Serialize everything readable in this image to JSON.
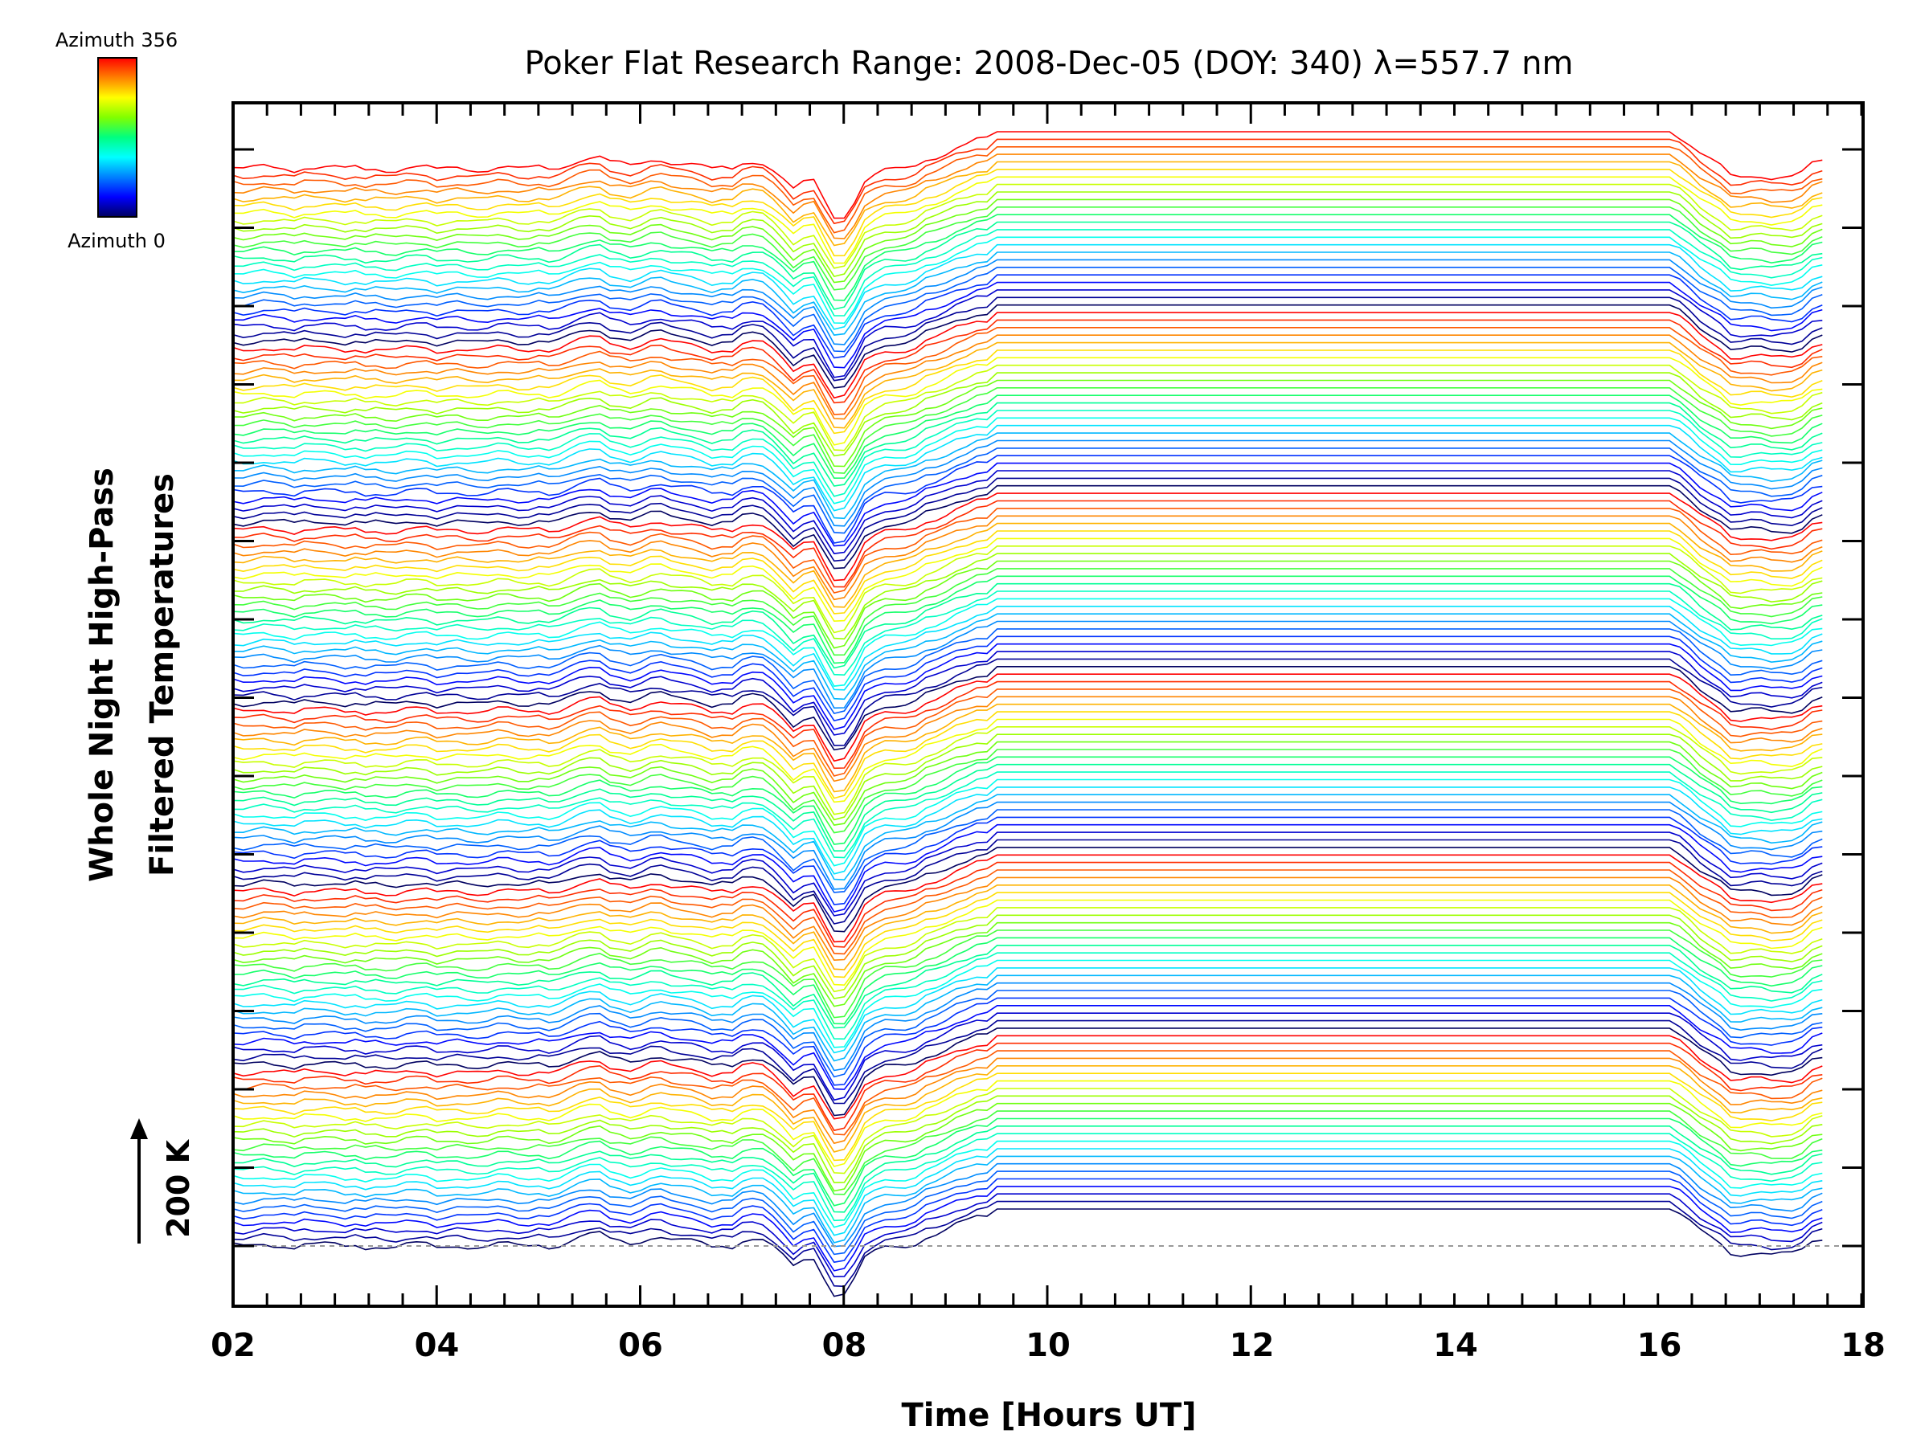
{
  "chart_data": {
    "type": "line",
    "title": "Poker Flat Research Range: 2008-Dec-05 (DOY: 340) λ=557.7 nm",
    "xlabel": "Time [Hours UT]",
    "ylabel_line1": "Whole Night High-Pass",
    "ylabel_line2": "Filtered Temperatures",
    "xlim": [
      2,
      18
    ],
    "x_ticks": [
      "02",
      "04",
      "06",
      "08",
      "10",
      "12",
      "14",
      "16",
      "18"
    ],
    "x_tick_values": [
      2,
      4,
      6,
      8,
      10,
      12,
      14,
      16,
      18
    ],
    "x_minor_step": 0.333,
    "y_major_ticks": 15,
    "scale_bar_label": "200 K",
    "colorbar": {
      "top_label": "Azimuth 356",
      "bottom_label": "Azimuth 0",
      "colors": [
        "#ff0000",
        "#ff8000",
        "#ffff00",
        "#80ff00",
        "#00ff80",
        "#00ffff",
        "#0080ff",
        "#0000ff",
        "#000060"
      ]
    },
    "series_count": 144,
    "azimuth_range": [
      0,
      356
    ],
    "time_start": 2.0,
    "time_end": 17.6,
    "data_gap": [
      9.45,
      16.15
    ],
    "grid": false
  }
}
